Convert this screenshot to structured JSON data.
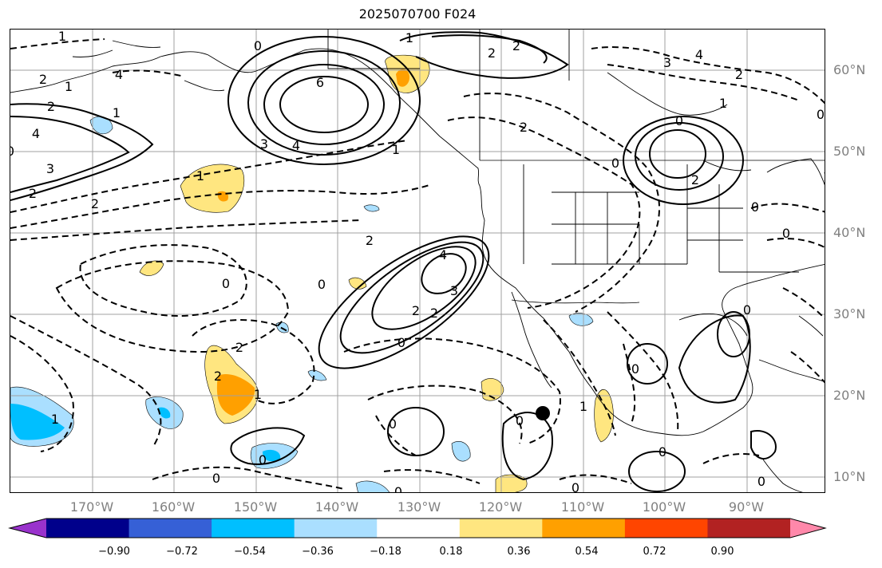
{
  "title": "2025070700 F024",
  "lat_labels": [
    "60°N",
    "50°N",
    "40°N",
    "30°N",
    "20°N",
    "10°N"
  ],
  "lon_labels": [
    "170°W",
    "160°W",
    "150°W",
    "140°W",
    "130°W",
    "120°W",
    "110°W",
    "100°W",
    "90°W"
  ],
  "colorbar": {
    "colors": [
      "#9932cc",
      "#00008b",
      "#3660d6",
      "#00bfff",
      "#aadfff",
      "#ffffff",
      "#ffe680",
      "#ffa000",
      "#ff4500",
      "#b22222",
      "#ff88aa"
    ],
    "tick_labels": [
      "−0.90",
      "−0.72",
      "−0.54",
      "−0.36",
      "−0.18",
      "0.18",
      "0.36",
      "0.54",
      "0.72",
      "0.90"
    ]
  },
  "contour_labels": [
    {
      "text": "1"
    },
    {
      "text": "2"
    },
    {
      "text": "1"
    },
    {
      "text": "0"
    },
    {
      "text": "1"
    },
    {
      "text": "2"
    },
    {
      "text": "2"
    },
    {
      "text": "3"
    },
    {
      "text": "4"
    },
    {
      "text": "2"
    },
    {
      "text": "4"
    },
    {
      "text": "1"
    },
    {
      "text": "6"
    },
    {
      "text": "3"
    },
    {
      "text": "4"
    },
    {
      "text": "0"
    },
    {
      "text": "1"
    },
    {
      "text": "1"
    },
    {
      "text": "2"
    },
    {
      "text": "2"
    },
    {
      "text": "3"
    },
    {
      "text": "4"
    },
    {
      "text": "2"
    },
    {
      "text": "1"
    },
    {
      "text": "0"
    },
    {
      "text": "2"
    },
    {
      "text": "2"
    },
    {
      "text": "0"
    },
    {
      "text": "0"
    },
    {
      "text": "2"
    },
    {
      "text": "4"
    },
    {
      "text": "3"
    },
    {
      "text": "2"
    },
    {
      "text": "2"
    },
    {
      "text": "0"
    },
    {
      "text": "0"
    },
    {
      "text": "0"
    },
    {
      "text": "2"
    },
    {
      "text": "2"
    },
    {
      "text": "1"
    },
    {
      "text": "1"
    },
    {
      "text": "0"
    },
    {
      "text": "0"
    },
    {
      "text": "0"
    },
    {
      "text": "0"
    },
    {
      "text": "0"
    },
    {
      "text": "1"
    },
    {
      "text": "0"
    },
    {
      "text": "0"
    },
    {
      "text": "0"
    },
    {
      "text": "0"
    },
    {
      "text": "1"
    },
    {
      "text": "0"
    },
    {
      "text": "0"
    },
    {
      "text": "0"
    }
  ]
}
